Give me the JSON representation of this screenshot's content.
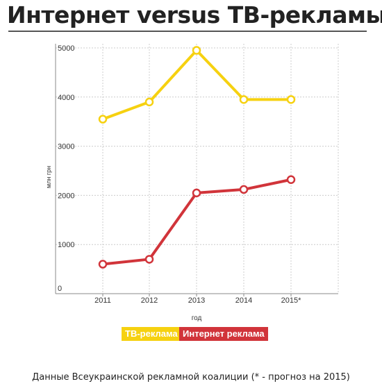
{
  "header": {
    "title": "Интернет versus ТВ-рекламы"
  },
  "footer": {
    "caption": "Данные Всеукраинской рекламной коалиции (* - прогноз на 2015)"
  },
  "chart_data": {
    "type": "line",
    "title": "Интернет versus ТВ-рекламы",
    "xlabel": "год",
    "ylabel": "млн грн",
    "categories": [
      "2011",
      "2012",
      "2013",
      "2014",
      "2015*"
    ],
    "yticks": [
      "0",
      "1000",
      "2000",
      "3000",
      "4000",
      "5000"
    ],
    "ylim": [
      0,
      5000
    ],
    "grid": true,
    "legend_position": "bottom-center",
    "series": [
      {
        "name": "ТВ-реклама",
        "color": "#f6d110",
        "values": [
          3550,
          3900,
          4950,
          3950,
          3950
        ]
      },
      {
        "name": "Интернет реклама",
        "color": "#d1343a",
        "values": [
          600,
          700,
          2050,
          2120,
          2320
        ]
      }
    ]
  }
}
